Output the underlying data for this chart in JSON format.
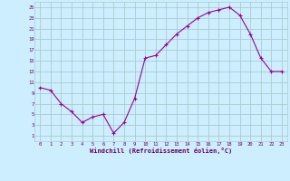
{
  "x": [
    0,
    1,
    2,
    3,
    4,
    5,
    6,
    7,
    8,
    9,
    10,
    11,
    12,
    13,
    14,
    15,
    16,
    17,
    18,
    19,
    20,
    21,
    22,
    23
  ],
  "y": [
    10,
    9.5,
    7,
    5.5,
    3.5,
    4.5,
    5,
    1.5,
    3.5,
    8,
    15.5,
    16,
    18,
    20,
    21.5,
    23,
    24,
    24.5,
    25,
    23.5,
    20,
    15.5,
    13,
    13
  ],
  "xlim": [
    -0.5,
    23.5
  ],
  "ylim": [
    0,
    26
  ],
  "xticks": [
    0,
    1,
    2,
    3,
    4,
    5,
    6,
    7,
    8,
    9,
    10,
    11,
    12,
    13,
    14,
    15,
    16,
    17,
    18,
    19,
    20,
    21,
    22,
    23
  ],
  "yticks": [
    1,
    3,
    5,
    7,
    9,
    11,
    13,
    15,
    17,
    19,
    21,
    23,
    25
  ],
  "xlabel": "Windchill (Refroidissement éolien,°C)",
  "line_color": "#990099",
  "marker": "+",
  "bg_color": "#cceeff",
  "grid_color": "#aacccc",
  "xlabel_color": "#660066",
  "tick_color": "#660066",
  "marker_size": 3,
  "line_width": 0.8
}
